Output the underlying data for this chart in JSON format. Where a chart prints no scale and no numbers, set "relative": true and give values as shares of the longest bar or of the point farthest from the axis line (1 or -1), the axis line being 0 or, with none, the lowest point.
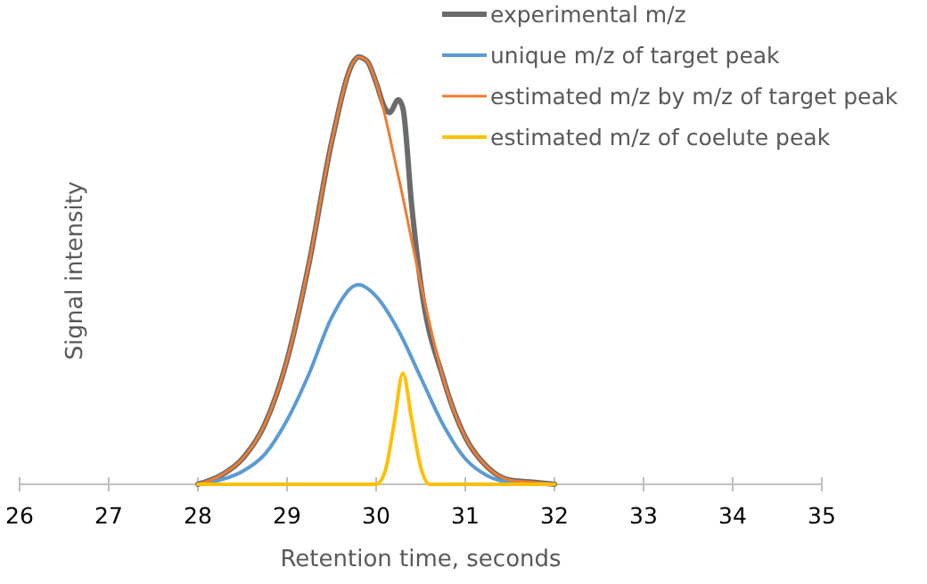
{
  "chart_data": {
    "type": "line",
    "xlabel": "Retention time, seconds",
    "ylabel": "Signal intensity",
    "relative": true,
    "xlim": [
      26,
      35
    ],
    "xticks": [
      26,
      27,
      28,
      29,
      30,
      31,
      32,
      33,
      34,
      35
    ],
    "legend": "top right",
    "series": [
      {
        "name": "experimental m/z",
        "color": "#6b6b6b",
        "x": [
          28,
          28.25,
          28.5,
          28.75,
          29,
          29.25,
          29.5,
          29.75,
          29.8,
          29.9,
          30,
          30.1,
          30.15,
          30.25,
          30.3,
          30.4,
          30.5,
          30.75,
          31,
          31.25,
          31.5,
          31.75,
          32
        ],
        "values": [
          0,
          0.02,
          0.06,
          0.14,
          0.29,
          0.52,
          0.8,
          0.99,
          1,
          0.99,
          0.94,
          0.88,
          0.87,
          0.9,
          0.88,
          0.65,
          0.47,
          0.25,
          0.11,
          0.04,
          0.01,
          0.005,
          0
        ]
      },
      {
        "name": "unique m/z of target peak",
        "color": "#5b9bd5",
        "x": [
          28,
          28.25,
          28.5,
          28.75,
          29,
          29.25,
          29.5,
          29.8,
          30,
          30.25,
          30.5,
          30.75,
          31,
          31.25,
          31.5,
          32
        ],
        "values": [
          0,
          0.01,
          0.03,
          0.07,
          0.15,
          0.26,
          0.39,
          0.467,
          0.44,
          0.36,
          0.25,
          0.14,
          0.06,
          0.02,
          0.005,
          0
        ]
      },
      {
        "name": "estimated m/z by m/z of target peak",
        "color": "#ed7d31",
        "x": [
          28,
          28.25,
          28.5,
          28.75,
          29,
          29.25,
          29.5,
          29.75,
          29.8,
          29.9,
          30,
          30.25,
          30.5,
          30.75,
          31,
          31.25,
          31.5,
          31.75,
          32
        ],
        "values": [
          0,
          0.02,
          0.06,
          0.14,
          0.29,
          0.52,
          0.8,
          0.99,
          1,
          0.99,
          0.94,
          0.72,
          0.47,
          0.25,
          0.11,
          0.04,
          0.01,
          0.005,
          0
        ]
      },
      {
        "name": "estimated m/z of coelute peak",
        "color": "#ffc000",
        "x": [
          28,
          30,
          30.1,
          30.2,
          30.3,
          30.4,
          30.5,
          30.6,
          32
        ],
        "values": [
          0,
          0,
          0.03,
          0.14,
          0.26,
          0.15,
          0.04,
          0,
          0
        ]
      }
    ]
  }
}
